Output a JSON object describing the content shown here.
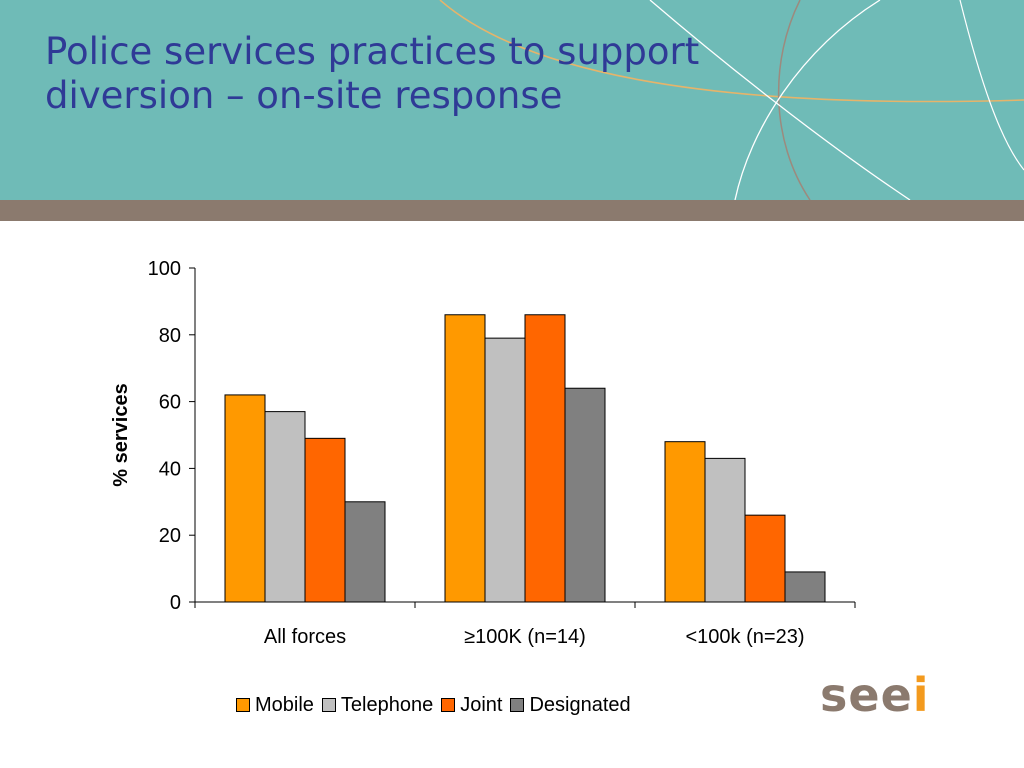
{
  "slide": {
    "title_line1": "Police services practices to support",
    "title_line2": "diversion – on-site response"
  },
  "logo": {
    "text_main": "see",
    "text_accent": "i"
  },
  "colors": {
    "header_bg": "#6fbbb7",
    "divider": "#8b7a6e",
    "title": "#2f3a96",
    "logo_main": "#8b7a6e",
    "logo_accent": "#f39a1e"
  },
  "chart_data": {
    "type": "bar",
    "title": "",
    "xlabel": "",
    "ylabel": "% services",
    "ylim": [
      0,
      100
    ],
    "yticks": [
      0,
      20,
      40,
      60,
      80,
      100
    ],
    "grid": false,
    "legend_position": "bottom",
    "categories": [
      "All forces",
      "≥100K (n=14)",
      "<100k (n=23)"
    ],
    "series": [
      {
        "name": "Mobile",
        "color": "#ff9900",
        "values": [
          62,
          86,
          48
        ]
      },
      {
        "name": "Telephone",
        "color": "#c0c0c0",
        "values": [
          57,
          79,
          43
        ]
      },
      {
        "name": "Joint",
        "color": "#ff6600",
        "values": [
          49,
          86,
          26
        ]
      },
      {
        "name": "Designated",
        "color": "#808080",
        "values": [
          30,
          64,
          9
        ]
      }
    ]
  }
}
